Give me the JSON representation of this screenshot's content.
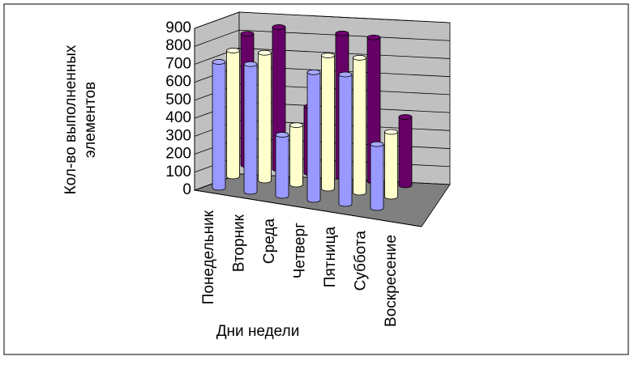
{
  "chart_data": {
    "type": "bar3d",
    "y_label": [
      "Кол-во выполненных",
      "элементов"
    ],
    "x_label": "Дни недели",
    "categories": [
      "Понедельник",
      "Вторник",
      "Среда",
      "Четверг",
      "Пятница",
      "Суббота",
      "Воскресение"
    ],
    "series": [
      {
        "color": "#9999ff",
        "values": [
          700,
          710,
          340,
          710,
          720,
          355,
          null
        ]
      },
      {
        "color": "#ffffcc",
        "values": [
          700,
          710,
          330,
          740,
          750,
          360,
          null
        ]
      },
      {
        "color": "#660066",
        "values": [
          730,
          790,
          370,
          800,
          800,
          380,
          null
        ]
      }
    ],
    "ylim": [
      0,
      900
    ],
    "yticks": [
      0,
      100,
      200,
      300,
      400,
      500,
      600,
      700,
      800,
      900
    ],
    "grid": true
  }
}
